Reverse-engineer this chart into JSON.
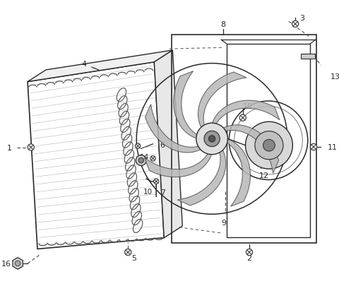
{
  "bg_color": "#ffffff",
  "lc": "#2a2a2a",
  "gray": "#888888",
  "lgray": "#bbbbbb",
  "dgray": "#555555",
  "dash": [
    4,
    3
  ]
}
